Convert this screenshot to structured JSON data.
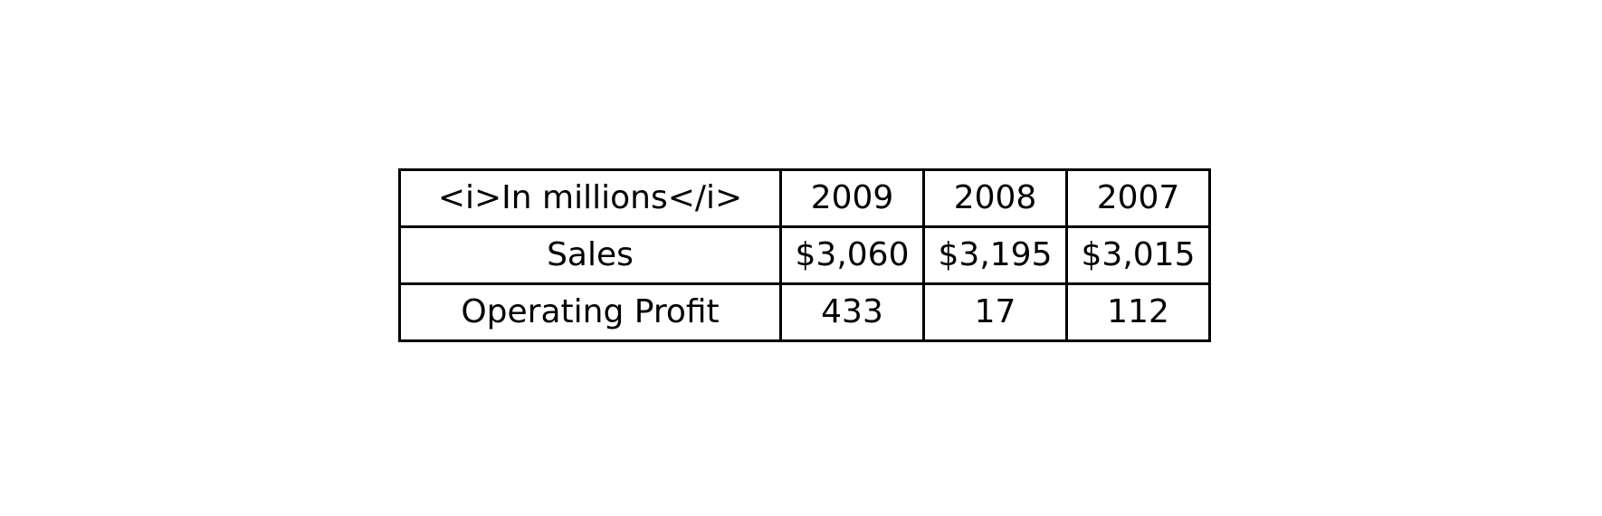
{
  "chart_data": {
    "type": "table",
    "columns": [
      "<i>In millions</i>",
      "2009",
      "2008",
      "2007"
    ],
    "rows": [
      [
        "Sales",
        "$3,060",
        "$3,195",
        "$3,015"
      ],
      [
        "Operating Profit",
        "433",
        "17",
        "112"
      ]
    ]
  }
}
